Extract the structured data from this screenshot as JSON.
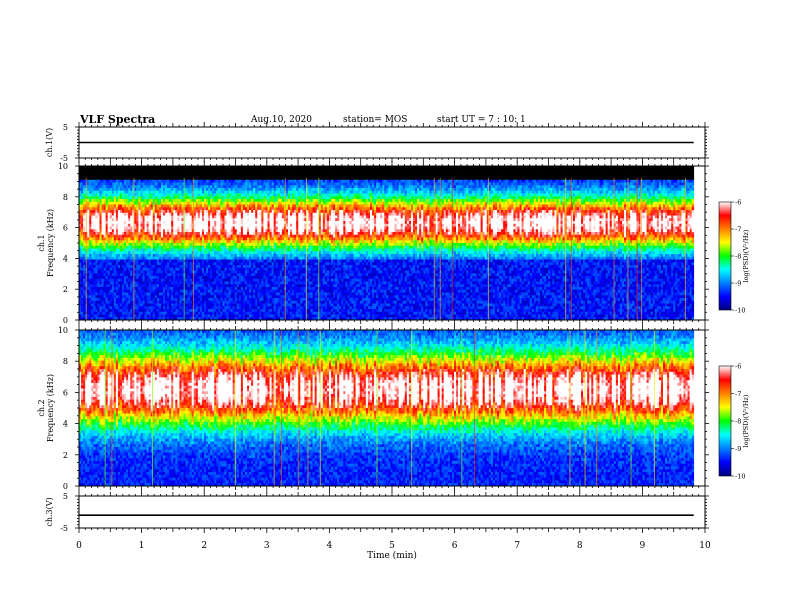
{
  "header": {
    "title": "VLF Spectra",
    "date": "Aug.10, 2020",
    "station": "station= MOS",
    "start": "start  UT =  7 : 10: 1"
  },
  "colors": {
    "scale": [
      "#00007f",
      "#0000ff",
      "#0080ff",
      "#00ffff",
      "#00ff00",
      "#ffff00",
      "#ff8000",
      "#ff0000",
      "#ffffff"
    ]
  },
  "chart_data": [
    {
      "type": "line",
      "name": "ch1-voltage",
      "ylabel": "ch.1(V)",
      "xlim": [
        0,
        10
      ],
      "ylim": [
        -5,
        5
      ],
      "yticks": [
        5,
        -5
      ],
      "series": [
        {
          "x": [
            0,
            9.82
          ],
          "y": [
            0,
            0
          ]
        }
      ]
    },
    {
      "type": "heatmap",
      "name": "ch1-spectrogram",
      "ylabel": "ch.1\nFrequency (kHz)",
      "xlim": [
        0,
        10
      ],
      "ylim": [
        0,
        10
      ],
      "yticks": [
        0,
        2,
        4,
        6,
        8,
        10
      ],
      "data_extent_min": 9.82,
      "colorbar": {
        "label": "log(PSD)(V²/Hz)",
        "ticks": [
          -6,
          -7,
          -8,
          -9,
          -10
        ],
        "range": [
          -10,
          -6
        ]
      },
      "features": {
        "black_above_khz": 9.0,
        "band_center_khz": 6.3,
        "band_half_width_khz": 1.5
      }
    },
    {
      "type": "heatmap",
      "name": "ch2-spectrogram",
      "ylabel": "ch.2\nFrequency (kHz)",
      "xlim": [
        0,
        10
      ],
      "ylim": [
        0,
        10
      ],
      "yticks": [
        0,
        2,
        4,
        6,
        8,
        10
      ],
      "data_extent_min": 9.82,
      "colorbar": {
        "label": "log(PSD)(V²/Hz)",
        "ticks": [
          -6,
          -7,
          -8,
          -9,
          -10
        ],
        "range": [
          -10,
          -6
        ]
      },
      "features": {
        "band_center_khz": 6.2,
        "band_half_width_khz": 2.2
      }
    },
    {
      "type": "line",
      "name": "ch3-voltage",
      "ylabel": "ch.3(V)",
      "xlabel": "Time (min)",
      "xlim": [
        0,
        10
      ],
      "ylim": [
        -5,
        5
      ],
      "yticks": [
        5,
        -5
      ],
      "xticks": [
        0,
        1,
        2,
        3,
        4,
        5,
        6,
        7,
        8,
        9,
        10
      ],
      "series": [
        {
          "x": [
            0,
            9.82
          ],
          "y": [
            -1,
            -1
          ]
        }
      ]
    }
  ]
}
